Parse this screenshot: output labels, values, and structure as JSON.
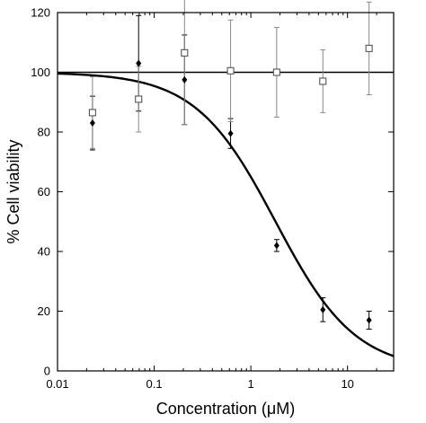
{
  "chart_data": {
    "type": "scatter",
    "xlabel": "Concentration (μM)",
    "ylabel": "% Cell viability",
    "xscale": "log",
    "xlim": [
      0.01,
      30
    ],
    "ylim": [
      0,
      120
    ],
    "grid": false,
    "legend": "none",
    "x_ticks": [
      {
        "value": 0.01,
        "label": "0.01"
      },
      {
        "value": 0.1,
        "label": "0.1"
      },
      {
        "value": 1,
        "label": "1"
      },
      {
        "value": 10,
        "label": "10"
      }
    ],
    "y_ticks": [
      0,
      20,
      40,
      60,
      80,
      100,
      120
    ],
    "series": [
      {
        "marker": "filled-diamond",
        "color": "#000000",
        "points": [
          {
            "x": 0.023,
            "y": 83,
            "err": 9
          },
          {
            "x": 0.069,
            "y": 103,
            "err": 16
          },
          {
            "x": 0.206,
            "y": 97.5,
            "err": 15
          },
          {
            "x": 0.617,
            "y": 79.5,
            "err": 5
          },
          {
            "x": 1.85,
            "y": 42,
            "err": 2
          },
          {
            "x": 5.56,
            "y": 20.5,
            "err": 4
          },
          {
            "x": 16.7,
            "y": 17,
            "err": 3
          }
        ]
      },
      {
        "marker": "open-square",
        "color": "#555555",
        "points": [
          {
            "x": 0.023,
            "y": 86.5,
            "err": 12
          },
          {
            "x": 0.069,
            "y": 91,
            "err": 11
          },
          {
            "x": 0.206,
            "y": 106.5,
            "err": 24
          },
          {
            "x": 0.617,
            "y": 100.5,
            "err": 17
          },
          {
            "x": 1.85,
            "y": 100,
            "err": 15
          },
          {
            "x": 5.56,
            "y": 97,
            "err": 10.5
          },
          {
            "x": 16.7,
            "y": 108,
            "err": 15.5
          }
        ]
      }
    ],
    "fits": [
      {
        "kind": "constant",
        "value": 100
      },
      {
        "kind": "hill",
        "top": 100,
        "bottom": 0,
        "ec50": 1.8,
        "slope": 1.05
      }
    ]
  }
}
